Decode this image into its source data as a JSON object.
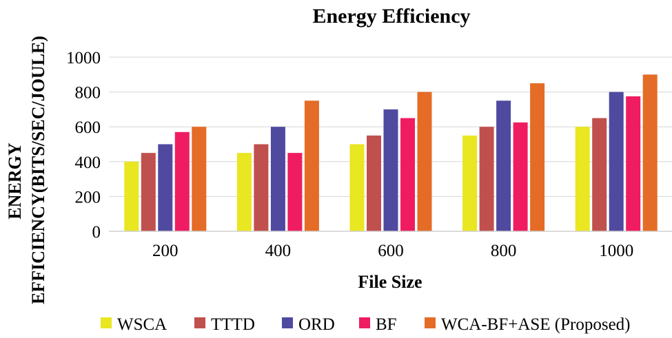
{
  "chart_data": {
    "type": "bar",
    "title": "Energy Efficiency",
    "xlabel": "File Size",
    "ylabel_line1": "ENERGY",
    "ylabel_line2": "EFFICIENCY(BITS/SEC/JOULE)",
    "categories": [
      "200",
      "400",
      "600",
      "800",
      "1000"
    ],
    "ylim": [
      0,
      1000
    ],
    "yticks": [
      0,
      200,
      400,
      600,
      800,
      1000
    ],
    "ytick_labels": [
      "0",
      "200",
      "400",
      "600",
      "800",
      "1000"
    ],
    "grid": true,
    "legend_position": "bottom",
    "series": [
      {
        "name": "WSCA",
        "color": "#e9e622",
        "values": [
          400,
          450,
          500,
          550,
          600
        ]
      },
      {
        "name": "TTTD",
        "color": "#c0504d",
        "values": [
          450,
          500,
          550,
          600,
          650
        ]
      },
      {
        "name": "ORD",
        "color": "#4f4aa0",
        "values": [
          500,
          600,
          700,
          750,
          800
        ]
      },
      {
        "name": "BF",
        "color": "#ef1c62",
        "values": [
          570,
          450,
          650,
          625,
          775
        ]
      },
      {
        "name": "WCA-BF+ASE (Proposed)",
        "color": "#e46c26",
        "values": [
          600,
          750,
          800,
          850,
          900
        ]
      }
    ]
  }
}
